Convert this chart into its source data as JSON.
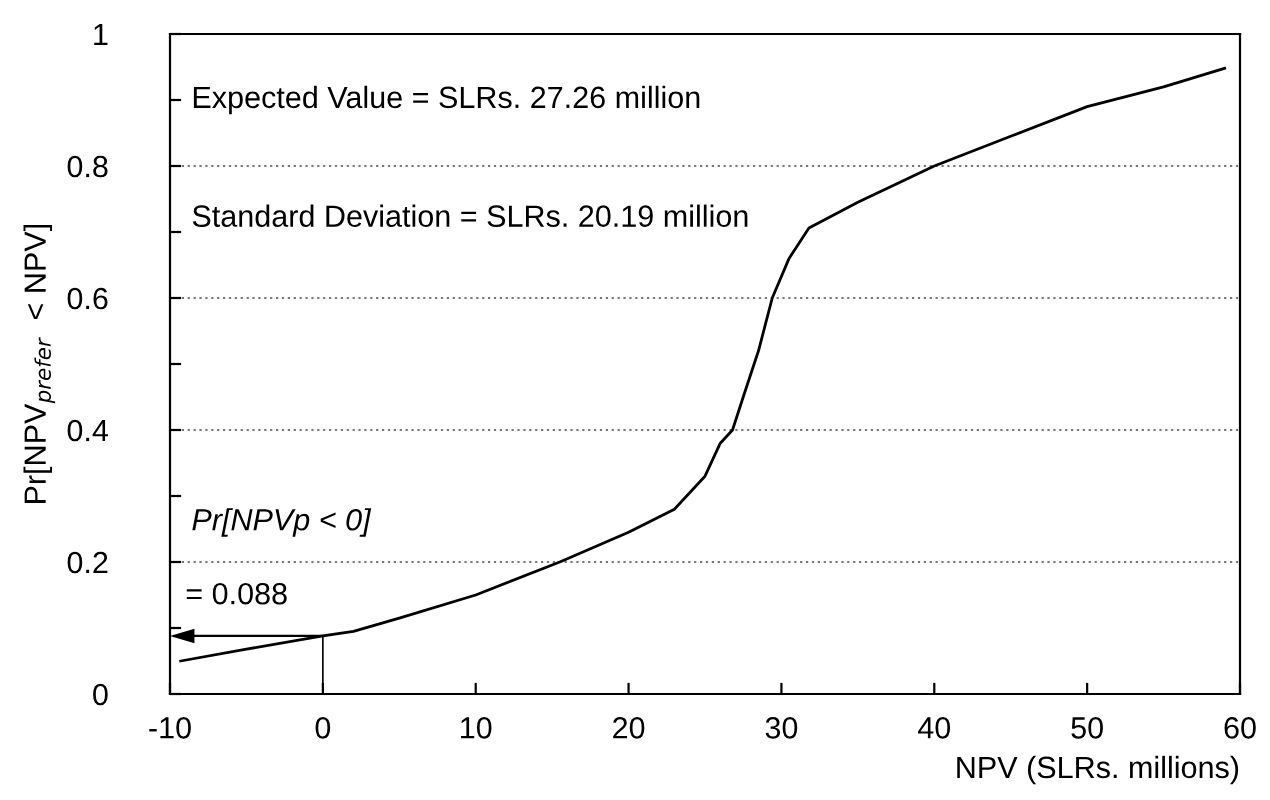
{
  "chart_data": {
    "type": "line",
    "xlabel": "NPV (SLRs. millions)",
    "ylabel": "Pr[NPV$_{prefer}$  < NPV]",
    "xlim": [
      -10,
      60
    ],
    "ylim": [
      0,
      1
    ],
    "xticks": [
      -10,
      0,
      10,
      20,
      30,
      40,
      50,
      60
    ],
    "yticks": [
      0,
      {
        "value": 0.1,
        "label": null
      },
      0.2,
      {
        "value": 0.3,
        "label": null
      },
      0.4,
      {
        "value": 0.5,
        "label": null
      },
      0.6,
      {
        "value": 0.7,
        "label": null
      },
      0.8,
      {
        "value": 0.9,
        "label": null
      },
      1
    ],
    "grid": "y",
    "legend": false,
    "marker": "none",
    "line_style": "solid",
    "series": [
      {
        "color": "#000000",
        "x": [
          -9.3,
          -5,
          0,
          2,
          5,
          10,
          15.5,
          20,
          23,
          25,
          26,
          26.8,
          27.5,
          28.5,
          29.4,
          30.5,
          31.8,
          35,
          40,
          45,
          50,
          55,
          59
        ],
        "values": [
          0.05,
          0.068,
          0.088,
          0.095,
          0.115,
          0.15,
          0.2,
          0.245,
          0.28,
          0.33,
          0.38,
          0.4,
          0.45,
          0.52,
          0.6,
          0.66,
          0.706,
          0.745,
          0.8,
          0.845,
          0.89,
          0.92,
          0.948
        ]
      }
    ],
    "annotations": [
      "Expected Value = SLRs. 27.26 million",
      "Standard Deviation = SLRs. 20.19 million",
      "Pr[NPVp < 0]",
      {
        "text": "= 0.088",
        "x": 0,
        "y": 0.088
      }
    ]
  }
}
